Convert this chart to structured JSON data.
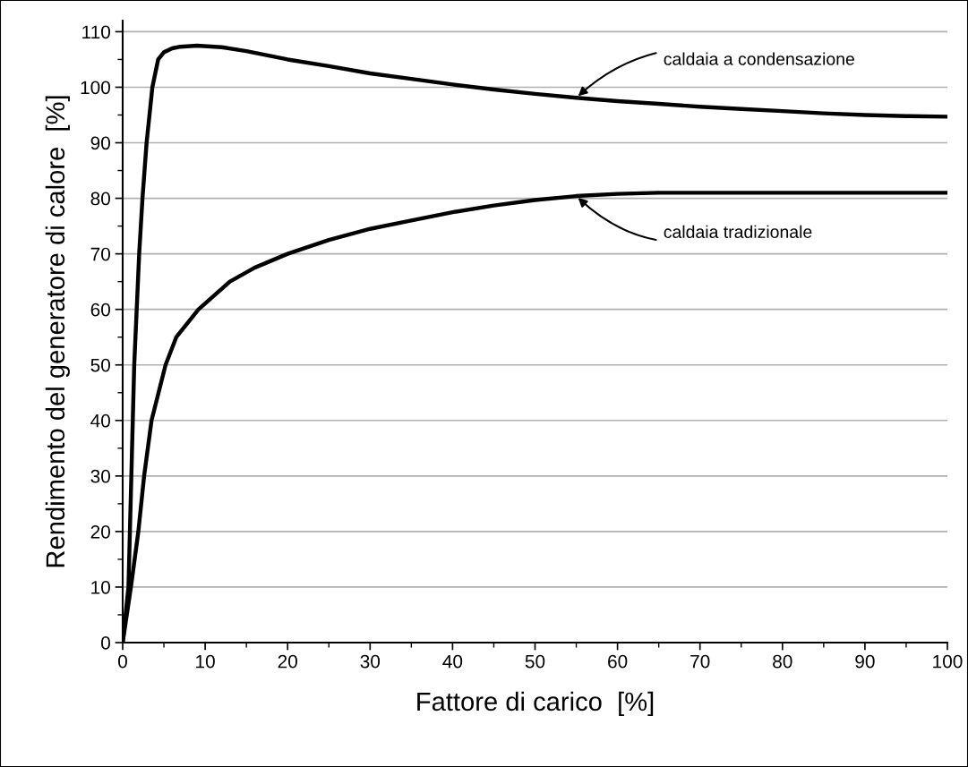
{
  "chart_data": {
    "type": "line",
    "xlabel": "Fattore di carico  [%]",
    "ylabel": "Rendimento del generatore di calore  [%]",
    "series": [
      {
        "color": "#000000",
        "x": [
          0,
          0.7,
          1.4,
          2.0,
          2.4,
          2.9,
          3.6,
          4.3,
          5,
          6,
          7,
          9,
          12,
          15,
          20,
          25,
          30,
          35,
          40,
          45,
          50,
          55,
          60,
          65,
          70,
          75,
          80,
          85,
          90,
          95,
          100
        ],
        "values": [
          0,
          10,
          50,
          70,
          80,
          90,
          100,
          105,
          106.3,
          107,
          107.3,
          107.5,
          107.2,
          106.5,
          105,
          103.8,
          102.5,
          101.5,
          100.5,
          99.6,
          98.8,
          98.1,
          97.5,
          97,
          96.5,
          96.1,
          95.7,
          95.3,
          95,
          94.8,
          94.7
        ]
      },
      {
        "color": "#000000",
        "x": [
          0,
          1.0,
          1.9,
          2.6,
          3.5,
          5.2,
          6.5,
          9.2,
          13,
          16,
          20,
          25,
          30,
          35,
          40,
          45,
          50,
          55,
          60,
          65,
          70,
          80,
          90,
          100
        ],
        "values": [
          0,
          10,
          20,
          30,
          40,
          50,
          55,
          60,
          65,
          67.5,
          70,
          72.5,
          74.5,
          76,
          77.5,
          78.7,
          79.7,
          80.4,
          80.8,
          81,
          81,
          81,
          81,
          81
        ]
      }
    ],
    "annotations": [
      {
        "text": "caldaia a condensazione",
        "x": 55,
        "y": 98.1
      },
      {
        "text": "caldaia tradizionale",
        "x": 55,
        "y": 80.4
      }
    ],
    "xlim": [
      0,
      100
    ],
    "ylim": [
      0,
      112
    ],
    "xticks": [
      0,
      10,
      20,
      30,
      40,
      50,
      60,
      70,
      80,
      90,
      100
    ],
    "yticks": [
      0,
      10,
      20,
      30,
      40,
      50,
      60,
      70,
      80,
      90,
      100,
      110
    ],
    "grid": "y",
    "legend": false,
    "marker": "none",
    "line_style": "solid"
  }
}
